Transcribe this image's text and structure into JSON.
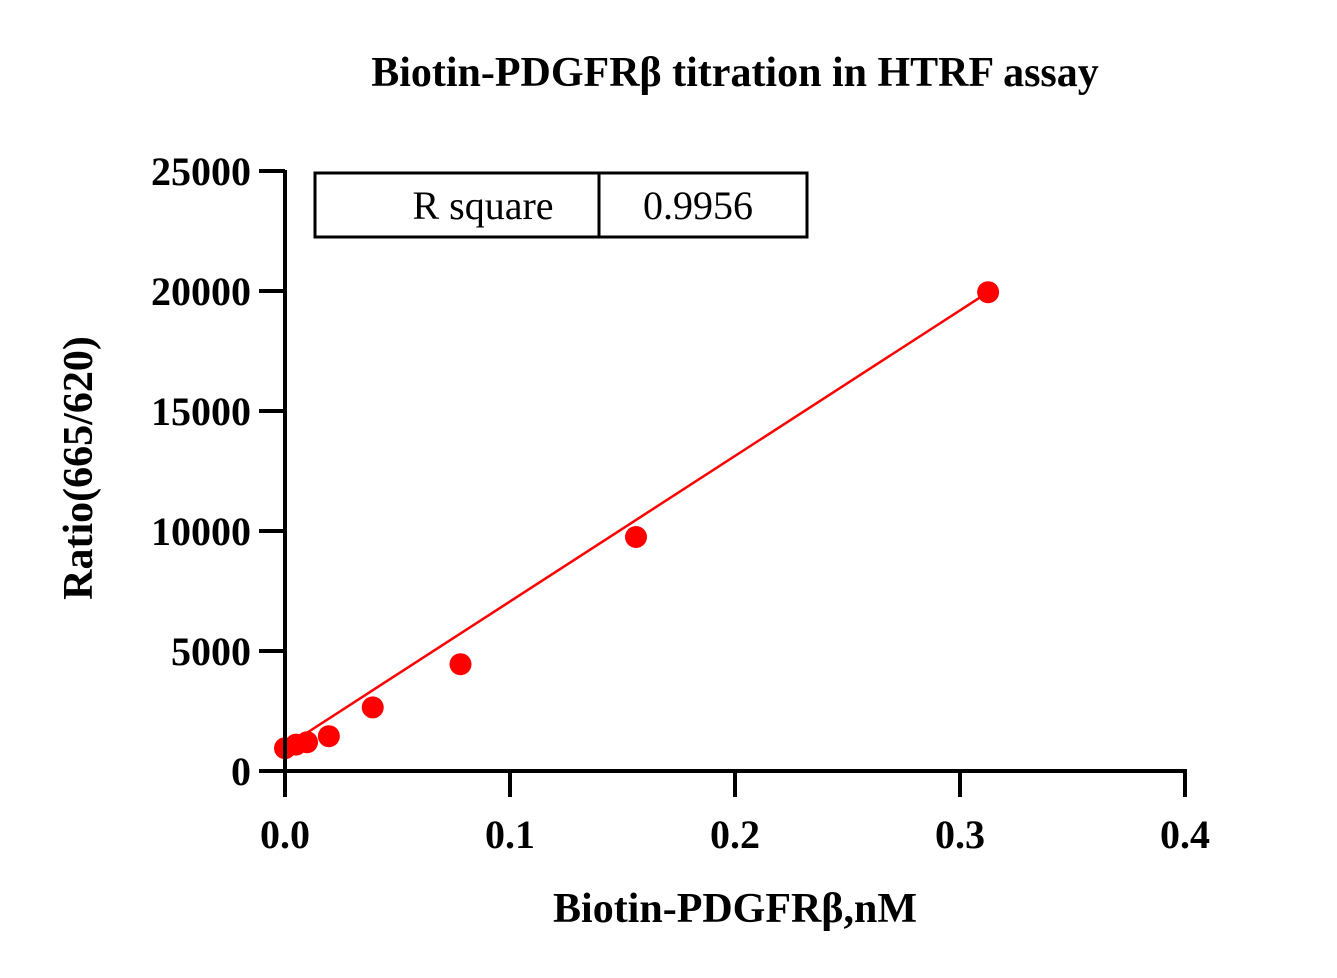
{
  "chart_data": {
    "type": "scatter",
    "title": "Biotin-PDGFRβ titration in HTRF assay",
    "xlabel": "Biotin-PDGFRβ,nM",
    "ylabel": "Ratio(665/620)",
    "xlim": [
      0,
      0.4
    ],
    "ylim": [
      0,
      25000
    ],
    "xticks": [
      "0.0",
      "0.1",
      "0.2",
      "0.3",
      "0.4"
    ],
    "yticks": [
      "0",
      "5000",
      "10000",
      "15000",
      "20000",
      "25000"
    ],
    "grid": false,
    "series": [
      {
        "points": [
          {
            "x": 0.0,
            "y": 950
          },
          {
            "x": 0.0049,
            "y": 1100
          },
          {
            "x": 0.0098,
            "y": 1200
          },
          {
            "x": 0.0195,
            "y": 1450
          },
          {
            "x": 0.039,
            "y": 2650
          },
          {
            "x": 0.078,
            "y": 4450
          },
          {
            "x": 0.156,
            "y": 9750
          },
          {
            "x": 0.3125,
            "y": 19950
          }
        ],
        "color": "#ff0000"
      }
    ],
    "fit_line": {
      "x": [
        0.0,
        0.3125
      ],
      "y": [
        1000,
        19950
      ],
      "color": "#ff0000"
    },
    "stats_box": {
      "label": "R square",
      "value": "0.9956"
    }
  }
}
